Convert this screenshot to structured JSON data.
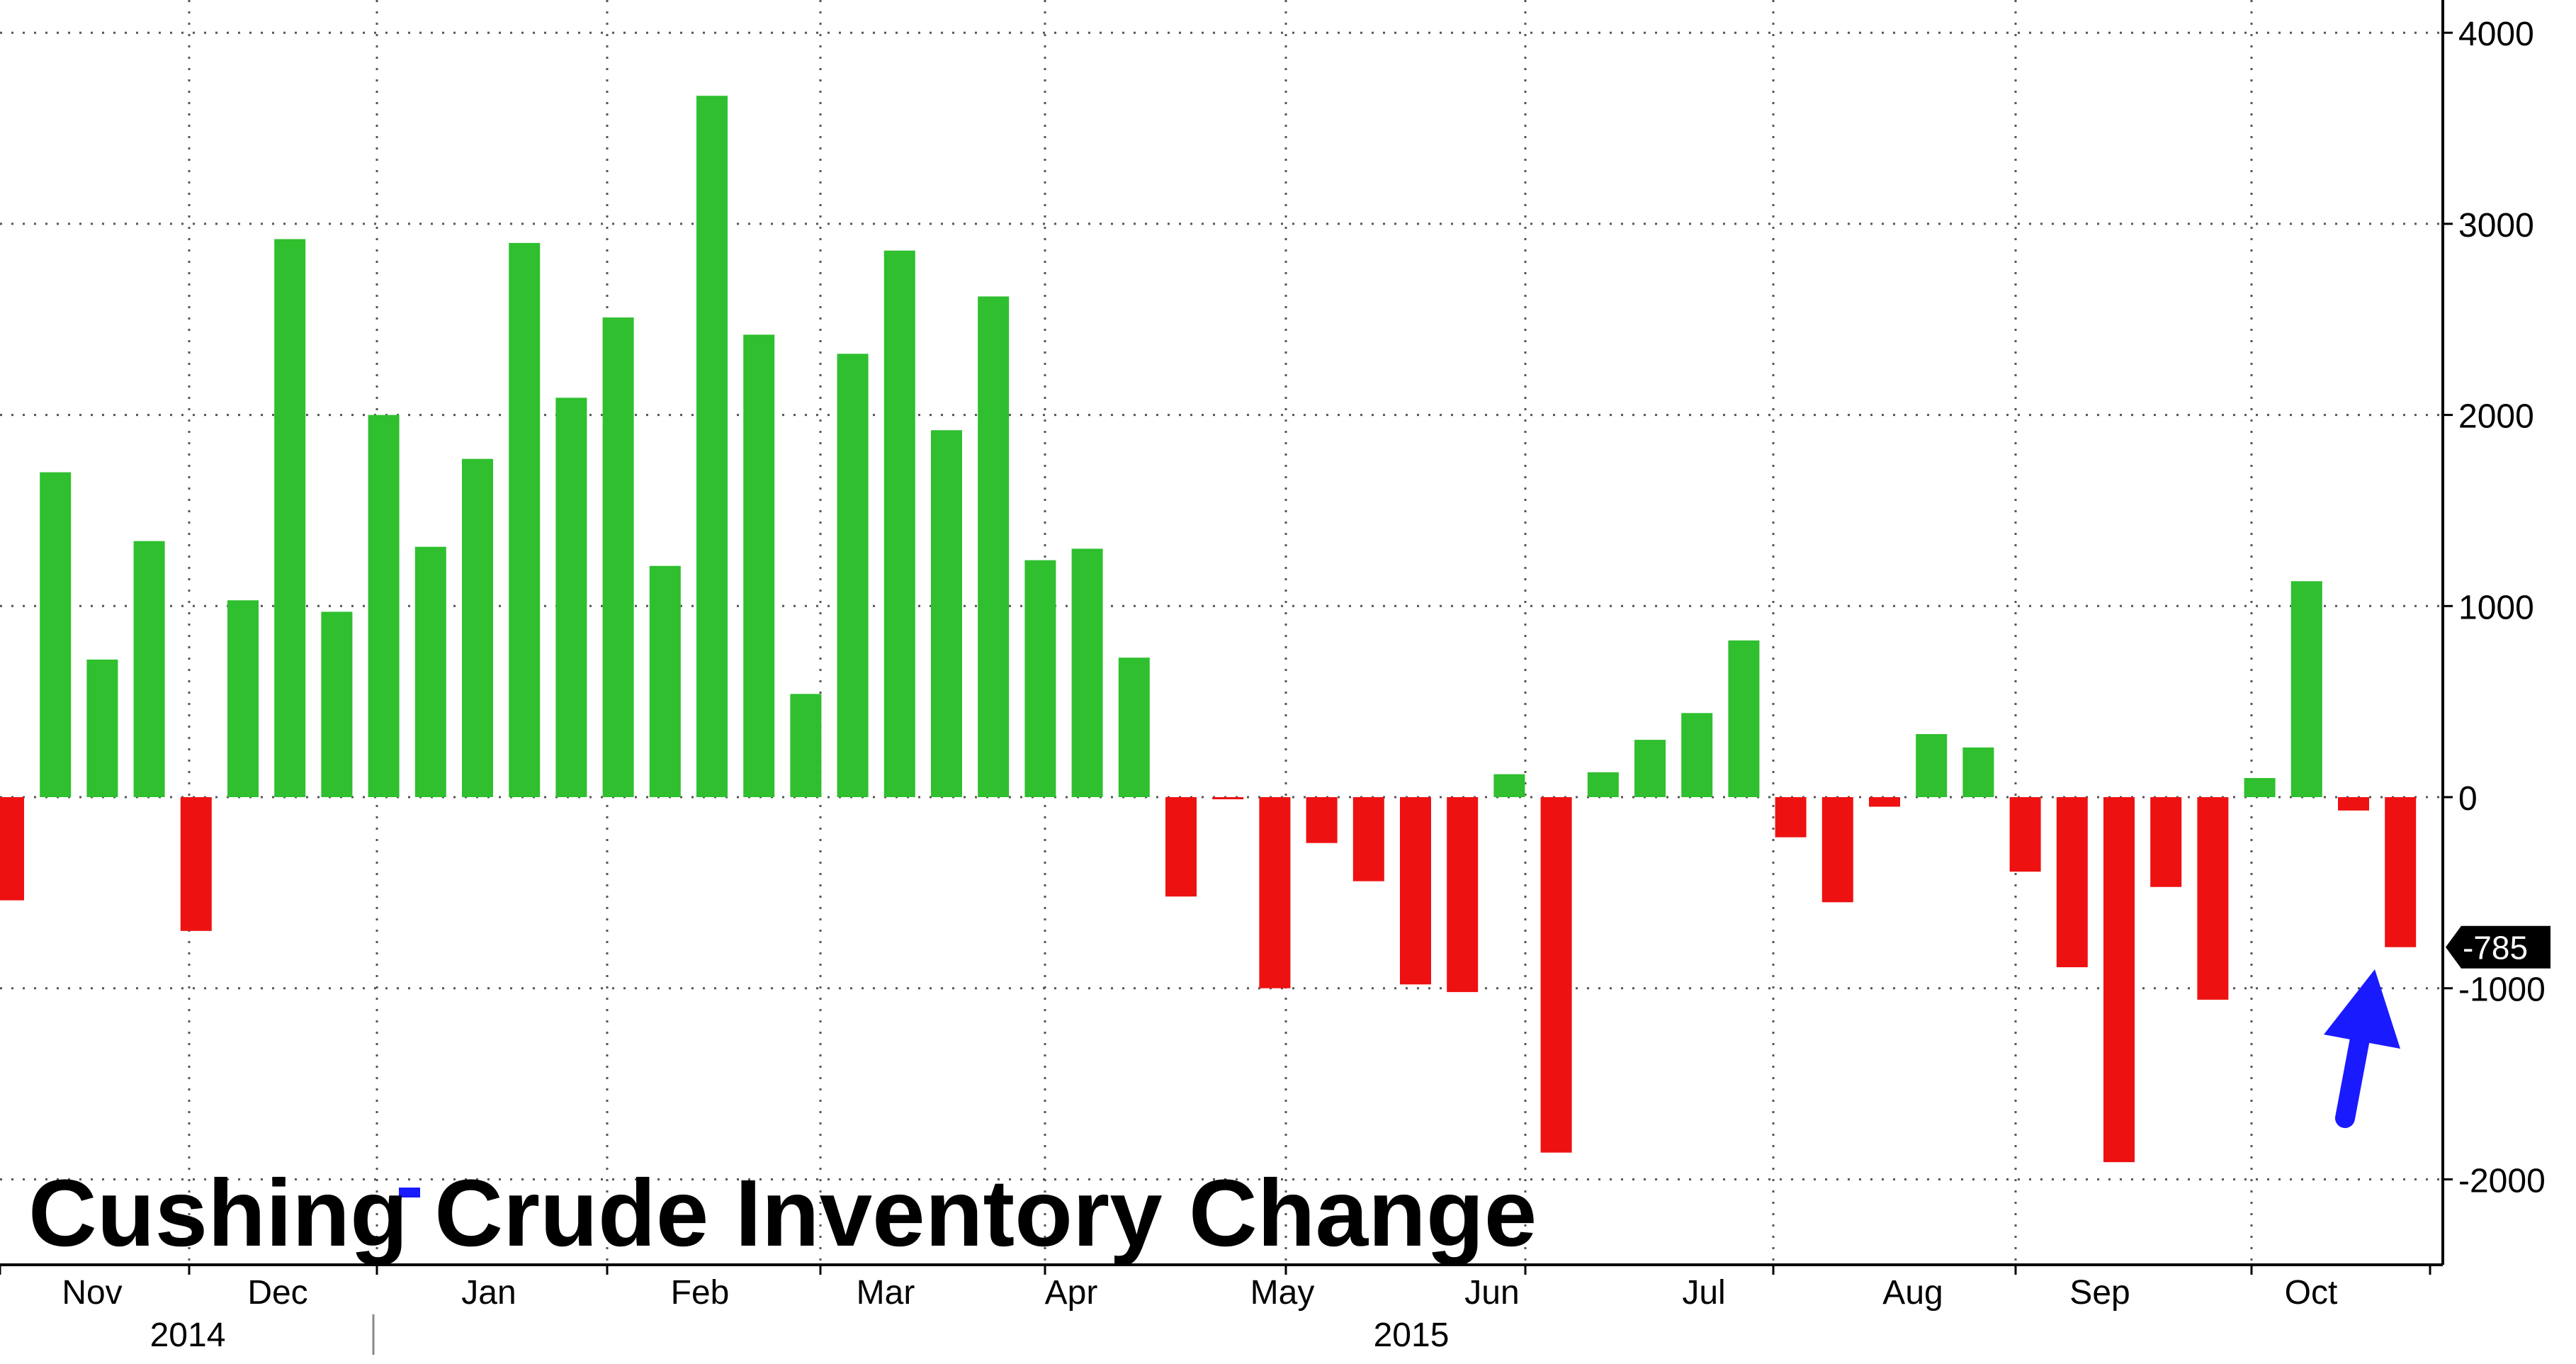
{
  "chart_data": {
    "type": "bar",
    "title": "Cushing Crude Inventory Change",
    "xlabel": "",
    "ylabel": "",
    "ylim": [
      -2400,
      4150
    ],
    "yticks": [
      4000,
      3000,
      2000,
      1000,
      0,
      -1000,
      -2000
    ],
    "ytick_labels": [
      "4000",
      "3000",
      "2000",
      "1000",
      "0",
      "-1000",
      "-2000"
    ],
    "month_labels": [
      "Nov",
      "Dec",
      "Jan",
      "Feb",
      "Mar",
      "Apr",
      "May",
      "Jun",
      "Jul",
      "Aug",
      "Sep",
      "Oct"
    ],
    "year_labels": [
      "2014",
      "2015"
    ],
    "last_value_label": "-785",
    "grid": true,
    "colors": {
      "positive": "#2fbf2f",
      "negative": "#ee1111",
      "arrow": "#1a1aff",
      "axis": "#000000",
      "grid": "#555555",
      "badge": "#000000"
    },
    "values": [
      -540,
      1700,
      720,
      1340,
      -700,
      1030,
      2920,
      970,
      2000,
      1310,
      1770,
      2900,
      2090,
      2510,
      1210,
      3670,
      2420,
      540,
      2320,
      2860,
      1920,
      2620,
      1240,
      1300,
      730,
      -520,
      -10,
      -1000,
      -240,
      -440,
      -980,
      -1020,
      120,
      -1860,
      130,
      300,
      440,
      820,
      -210,
      -550,
      -50,
      330,
      260,
      -390,
      -890,
      -1910,
      -470,
      -1060,
      100,
      1130,
      -70,
      -785
    ]
  }
}
